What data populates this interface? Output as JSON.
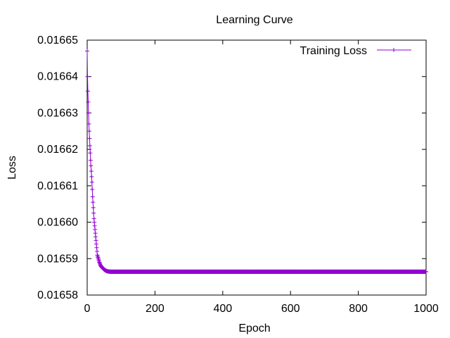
{
  "chart_data": {
    "type": "line",
    "title": "Learning Curve",
    "xlabel": "Epoch",
    "ylabel": "Loss",
    "xlim": [
      0,
      1000
    ],
    "ylim": [
      0.01658,
      0.01665
    ],
    "xticks": [
      0,
      200,
      400,
      600,
      800,
      1000
    ],
    "xtick_labels": [
      "0",
      "200",
      "400",
      "600",
      "800",
      "1000"
    ],
    "yticks": [
      0.01658,
      0.01659,
      0.0166,
      0.01661,
      0.01662,
      0.01663,
      0.01664,
      0.01665
    ],
    "ytick_labels": [
      "0.01658",
      "0.01659",
      "0.01660",
      "0.01661",
      "0.01662",
      "0.01663",
      "0.01664",
      "0.01665"
    ],
    "grid": false,
    "legend_position": "top-right",
    "series": [
      {
        "name": "Training Loss",
        "color": "#9400d3",
        "marker": "plus",
        "x": [
          0,
          1,
          2,
          3,
          4,
          5,
          6,
          7,
          8,
          9,
          10,
          12,
          14,
          16,
          18,
          20,
          22,
          24,
          26,
          28,
          30,
          33,
          36,
          40,
          45,
          50,
          55,
          60,
          70,
          80,
          100,
          150,
          200,
          300,
          400,
          500,
          600,
          700,
          800,
          900,
          1000
        ],
        "y": [
          0.016647,
          0.01664,
          0.016636,
          0.016633,
          0.01663,
          0.016627,
          0.016625,
          0.016623,
          0.016621,
          0.016619,
          0.016617,
          0.016614,
          0.016611,
          0.016607,
          0.016604,
          0.016601,
          0.016599,
          0.016597,
          0.016595,
          0.016593,
          0.016591,
          0.01659,
          0.016589,
          0.016588,
          0.0165875,
          0.016587,
          0.0165867,
          0.0165865,
          0.0165864,
          0.0165864,
          0.0165864,
          0.0165864,
          0.0165864,
          0.0165864,
          0.0165864,
          0.0165864,
          0.0165864,
          0.0165864,
          0.0165864,
          0.0165864,
          0.0165864
        ]
      }
    ]
  }
}
